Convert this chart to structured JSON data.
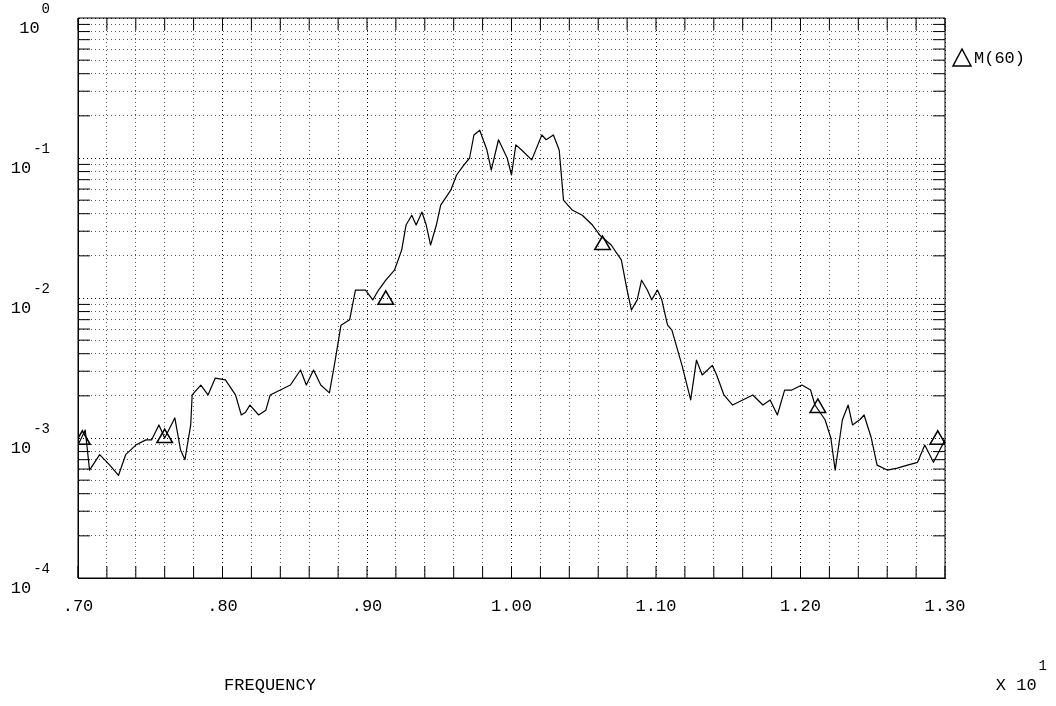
{
  "chart_data": {
    "type": "line",
    "xlabel": "FREQUENCY",
    "log": "y",
    "grid": true,
    "line_style": "dotted",
    "legend": "top right",
    "annotations": [
      "X 10$^{1}$"
    ],
    "xlim": [
      0.7,
      1.3
    ],
    "xticks": [
      {
        "value": 0.7,
        "label": ".70"
      },
      {
        "value": 0.72,
        "label": null
      },
      {
        "value": 0.74,
        "label": null
      },
      {
        "value": 0.76,
        "label": null
      },
      {
        "value": 0.78,
        "label": null
      },
      {
        "value": 0.8,
        "label": ".80"
      },
      {
        "value": 0.82,
        "label": null
      },
      {
        "value": 0.84,
        "label": null
      },
      {
        "value": 0.86,
        "label": null
      },
      {
        "value": 0.88,
        "label": null
      },
      {
        "value": 0.9,
        "label": ".90"
      },
      {
        "value": 0.92,
        "label": null
      },
      {
        "value": 0.94,
        "label": null
      },
      {
        "value": 0.96,
        "label": null
      },
      {
        "value": 0.98,
        "label": null
      },
      {
        "value": 1.0,
        "label": "1.00"
      },
      {
        "value": 1.02,
        "label": null
      },
      {
        "value": 1.04,
        "label": null
      },
      {
        "value": 1.06,
        "label": null
      },
      {
        "value": 1.08,
        "label": null
      },
      {
        "value": 1.1,
        "label": "1.10"
      },
      {
        "value": 1.12,
        "label": null
      },
      {
        "value": 1.14,
        "label": null
      },
      {
        "value": 1.16,
        "label": null
      },
      {
        "value": 1.18,
        "label": null
      },
      {
        "value": 1.2,
        "label": "1.20"
      },
      {
        "value": 1.22,
        "label": null
      },
      {
        "value": 1.24,
        "label": null
      },
      {
        "value": 1.26,
        "label": null
      },
      {
        "value": 1.28,
        "label": null
      },
      {
        "value": 1.3,
        "label": "1.30"
      }
    ],
    "ylim": [
      0.0001,
      1
    ],
    "yticks": [
      {
        "value": 0.0001,
        "label": "10$^{-4}$"
      },
      {
        "value": 0.0002,
        "label": null
      },
      {
        "value": 0.0003,
        "label": null
      },
      {
        "value": 0.0004,
        "label": null
      },
      {
        "value": 0.0005,
        "label": null
      },
      {
        "value": 0.0006,
        "label": null
      },
      {
        "value": 0.0007,
        "label": null
      },
      {
        "value": 0.0008,
        "label": null
      },
      {
        "value": 0.0009,
        "label": null
      },
      {
        "value": 0.001,
        "label": "10$^{-3}$"
      },
      {
        "value": 0.002,
        "label": null
      },
      {
        "value": 0.003,
        "label": null
      },
      {
        "value": 0.004,
        "label": null
      },
      {
        "value": 0.005,
        "label": null
      },
      {
        "value": 0.006,
        "label": null
      },
      {
        "value": 0.007,
        "label": null
      },
      {
        "value": 0.008,
        "label": null
      },
      {
        "value": 0.009,
        "label": null
      },
      {
        "value": 0.01,
        "label": "10$^{-2}$"
      },
      {
        "value": 0.02,
        "label": null
      },
      {
        "value": 0.03,
        "label": null
      },
      {
        "value": 0.04,
        "label": null
      },
      {
        "value": 0.05,
        "label": null
      },
      {
        "value": 0.06,
        "label": null
      },
      {
        "value": 0.07,
        "label": null
      },
      {
        "value": 0.08,
        "label": null
      },
      {
        "value": 0.09,
        "label": null
      },
      {
        "value": 0.1,
        "label": "10$^{-1}$"
      },
      {
        "value": 0.2,
        "label": null
      },
      {
        "value": 0.3,
        "label": null
      },
      {
        "value": 0.4,
        "label": null
      },
      {
        "value": 0.5,
        "label": null
      },
      {
        "value": 0.6,
        "label": null
      },
      {
        "value": 0.7,
        "label": null
      },
      {
        "value": 0.8,
        "label": null
      },
      {
        "value": 0.9,
        "label": null
      },
      {
        "value": 1,
        "label": "10$^{0}$"
      }
    ],
    "series": [
      {
        "color": "#000000",
        "marker": "none",
        "line_style": "solid",
        "x": [
          0.7,
          0.705,
          0.708,
          0.715,
          0.722,
          0.728,
          0.733,
          0.74,
          0.747,
          0.751,
          0.756,
          0.76,
          0.767,
          0.771,
          0.774,
          0.778,
          0.779,
          0.785,
          0.79,
          0.795,
          0.802,
          0.809,
          0.813,
          0.816,
          0.819,
          0.825,
          0.83,
          0.833,
          0.84,
          0.847,
          0.854,
          0.858,
          0.863,
          0.868,
          0.874,
          0.878,
          0.882,
          0.888,
          0.892,
          0.899,
          0.904,
          0.908,
          0.913,
          0.919,
          0.924,
          0.927,
          0.931,
          0.934,
          0.938,
          0.941,
          0.944,
          0.948,
          0.951,
          0.958,
          0.962,
          0.967,
          0.971,
          0.974,
          0.978,
          0.983,
          0.986,
          0.991,
          0.997,
          1.0,
          1.003,
          1.007,
          1.014,
          1.021,
          1.024,
          1.029,
          1.033,
          1.036,
          1.042,
          1.049,
          1.056,
          1.061,
          1.069,
          1.076,
          1.08,
          1.083,
          1.087,
          1.09,
          1.094,
          1.097,
          1.101,
          1.104,
          1.108,
          1.111,
          1.118,
          1.124,
          1.128,
          1.132,
          1.139,
          1.142,
          1.147,
          1.153,
          1.16,
          1.167,
          1.174,
          1.179,
          1.184,
          1.189,
          1.194,
          1.201,
          1.207,
          1.21,
          1.217,
          1.221,
          1.224,
          1.229,
          1.233,
          1.236,
          1.241,
          1.244,
          1.249,
          1.253,
          1.26,
          1.267,
          1.274,
          1.281,
          1.286,
          1.292,
          1.3
        ],
        "values": [
          0.00089,
          0.00114,
          0.00059,
          0.00076,
          0.00064,
          0.00054,
          0.00076,
          0.00089,
          0.00097,
          0.00097,
          0.00124,
          0.001,
          0.00139,
          0.00082,
          0.0007,
          0.00124,
          0.00203,
          0.00239,
          0.00203,
          0.00268,
          0.0026,
          0.00203,
          0.00146,
          0.00153,
          0.00172,
          0.00146,
          0.00158,
          0.00203,
          0.0022,
          0.00239,
          0.00306,
          0.00239,
          0.00306,
          0.00239,
          0.0021,
          0.0036,
          0.0064,
          0.007,
          0.0114,
          0.0114,
          0.0097,
          0.0114,
          0.0134,
          0.0158,
          0.022,
          0.0332,
          0.039,
          0.0332,
          0.0411,
          0.0332,
          0.0239,
          0.0332,
          0.0461,
          0.059,
          0.0756,
          0.089,
          0.1,
          0.146,
          0.158,
          0.114,
          0.082,
          0.135,
          0.1,
          0.0756,
          0.124,
          0.114,
          0.097,
          0.146,
          0.135,
          0.146,
          0.114,
          0.05,
          0.0425,
          0.039,
          0.0332,
          0.0282,
          0.0239,
          0.0187,
          0.0114,
          0.0082,
          0.0097,
          0.0134,
          0.0114,
          0.0097,
          0.0114,
          0.0097,
          0.0064,
          0.0059,
          0.0033,
          0.00187,
          0.0036,
          0.00282,
          0.0033,
          0.00282,
          0.00203,
          0.00172,
          0.00187,
          0.00203,
          0.00172,
          0.00187,
          0.00146,
          0.0022,
          0.0022,
          0.00239,
          0.0022,
          0.00172,
          0.00135,
          0.001,
          0.00059,
          0.00135,
          0.00172,
          0.00124,
          0.00135,
          0.00146,
          0.001,
          0.00064,
          0.00059,
          0.00061,
          0.00064,
          0.00067,
          0.00089,
          0.00067,
          0.00097
        ]
      },
      {
        "type": "scatter",
        "name": "M(60)",
        "color": "#000000",
        "marker": "triangle",
        "x": [
          0.703,
          0.76,
          0.913,
          1.063,
          1.212,
          1.295
        ],
        "values": [
          0.00097,
          0.001,
          0.0097,
          0.0239,
          0.00164,
          0.00097
        ]
      }
    ]
  }
}
